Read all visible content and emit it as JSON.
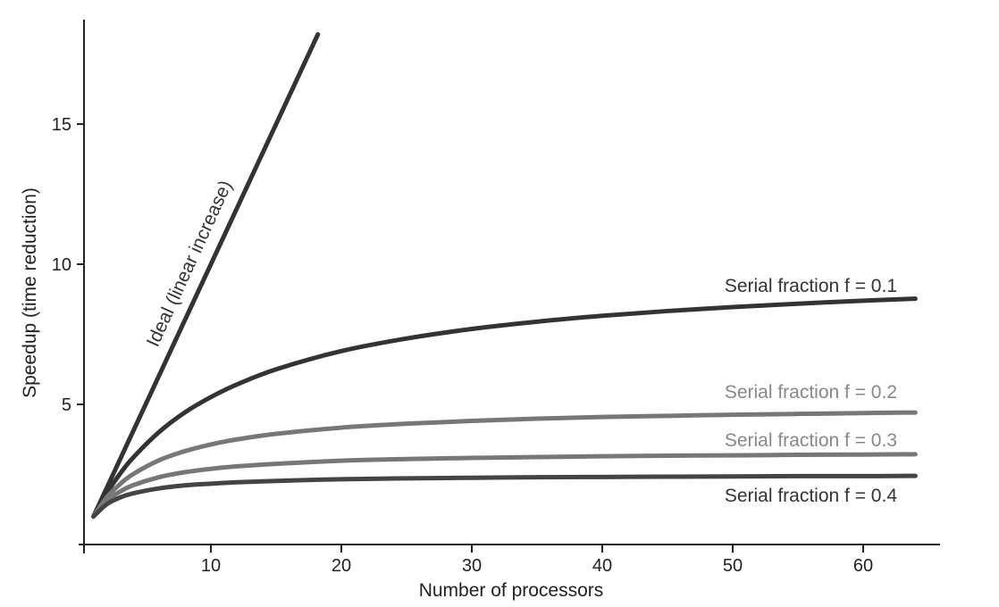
{
  "chart_data": {
    "type": "line",
    "title": "",
    "xlabel": "Number of processors",
    "ylabel": "Speedup (time reduction)",
    "xlim": [
      0,
      65
    ],
    "ylim": [
      0,
      19
    ],
    "x_ticks": [
      10,
      20,
      30,
      40,
      50,
      60
    ],
    "y_ticks": [
      5,
      10,
      15
    ],
    "grid": false,
    "legend": "none (inline labels beside curves)",
    "series": [
      {
        "name": "Ideal (linear increase)",
        "color": "#333333",
        "x": [
          1,
          18.2
        ],
        "y": [
          1,
          18.2
        ]
      },
      {
        "name": "Serial fraction f = 0.1",
        "color": "#333333",
        "x": [
          1,
          2,
          3,
          4,
          6,
          8,
          10,
          12,
          15,
          20,
          25,
          30,
          35,
          40,
          45,
          50,
          55,
          60,
          64
        ],
        "y": [
          1,
          1.82,
          2.5,
          3.08,
          4.0,
          4.71,
          5.26,
          5.71,
          6.25,
          6.9,
          7.35,
          7.69,
          7.95,
          8.16,
          8.33,
          8.47,
          8.59,
          8.7,
          8.77
        ]
      },
      {
        "name": "Serial fraction f = 0.2",
        "color": "#777777",
        "x": [
          1,
          2,
          3,
          4,
          6,
          8,
          10,
          12,
          15,
          20,
          25,
          30,
          35,
          40,
          45,
          50,
          55,
          60,
          64
        ],
        "y": [
          1,
          1.67,
          2.14,
          2.5,
          3.0,
          3.33,
          3.57,
          3.75,
          3.95,
          4.17,
          4.31,
          4.41,
          4.49,
          4.55,
          4.59,
          4.63,
          4.66,
          4.69,
          4.71
        ]
      },
      {
        "name": "Serial fraction f = 0.3",
        "color": "#777777",
        "x": [
          1,
          2,
          3,
          4,
          6,
          8,
          10,
          12,
          15,
          20,
          25,
          30,
          35,
          40,
          45,
          50,
          55,
          60,
          64
        ],
        "y": [
          1,
          1.54,
          1.88,
          2.11,
          2.4,
          2.58,
          2.7,
          2.79,
          2.88,
          2.99,
          3.05,
          3.09,
          3.12,
          3.15,
          3.17,
          3.18,
          3.2,
          3.21,
          3.22
        ]
      },
      {
        "name": "Serial fraction f = 0.4",
        "color": "#444444",
        "x": [
          1,
          2,
          3,
          4,
          6,
          8,
          10,
          12,
          15,
          20,
          25,
          30,
          35,
          40,
          45,
          50,
          55,
          60,
          64
        ],
        "y": [
          1,
          1.43,
          1.67,
          1.82,
          2.0,
          2.11,
          2.17,
          2.22,
          2.27,
          2.33,
          2.36,
          2.38,
          2.4,
          2.41,
          2.42,
          2.43,
          2.44,
          2.44,
          2.45
        ]
      }
    ]
  }
}
